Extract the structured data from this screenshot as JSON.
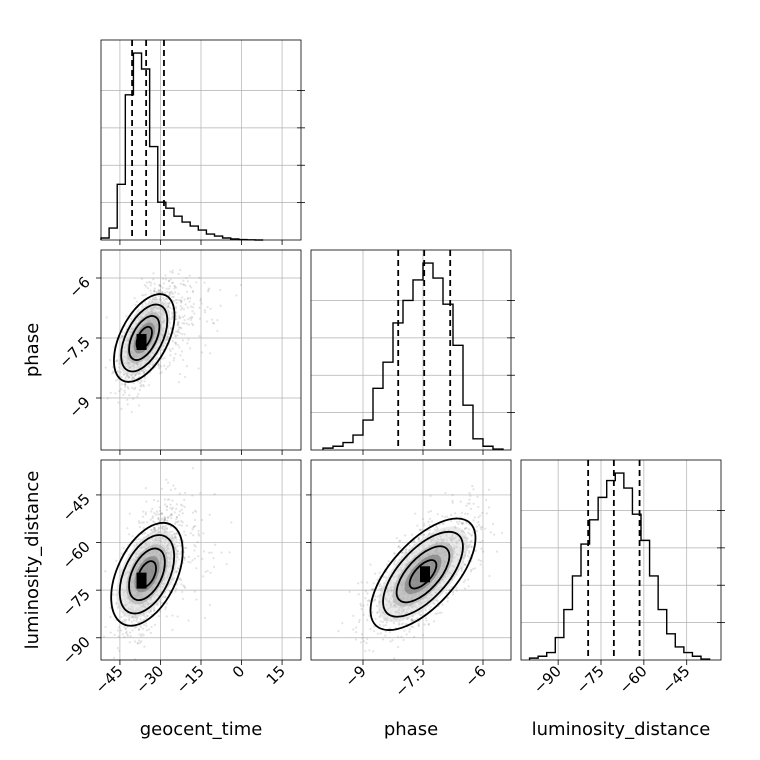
{
  "figure": {
    "type": "corner-plot",
    "colors": {
      "line": "#000000",
      "grid": "#b0b0b0",
      "axes": "#000000",
      "scatter": "#7f7f7f",
      "density_dark": "#000000",
      "density_light": "#e6e6e6"
    }
  },
  "chart_data": [
    {
      "type": "histogram",
      "panel": "geocent_time",
      "grid": true,
      "xlim": [
        -52,
        22
      ],
      "x_ticks": [
        -45,
        -30,
        -15,
        0,
        15
      ],
      "xlabel": "geocent_time",
      "bin_edges": [
        -52,
        -49,
        -46,
        -43,
        -40,
        -37,
        -34,
        -31,
        -28,
        -25,
        -22,
        -19,
        -16,
        -13,
        -10,
        -7,
        -4,
        -1,
        2,
        5,
        8
      ],
      "counts": [
        0.01,
        0.06,
        0.28,
        0.73,
        0.94,
        0.86,
        0.47,
        0.19,
        0.16,
        0.12,
        0.09,
        0.07,
        0.05,
        0.03,
        0.02,
        0.01,
        0.005,
        0.002,
        0.001,
        0.0
      ],
      "quantile_lines": [
        -40.5,
        -35.3,
        -28.7
      ]
    },
    {
      "type": "scatter+contour",
      "panel": "geocent_time_vs_phase",
      "grid": true,
      "xlim": [
        -52,
        22
      ],
      "ylim": [
        -10.3,
        -5.3
      ],
      "y_ticks": [
        -6.0,
        -7.5,
        -9.0
      ],
      "ylabel": "phase",
      "mean": [
        -36,
        -7.5
      ],
      "std": [
        4.5,
        0.6
      ],
      "correlation": 0.6,
      "contour_levels": [
        0.12,
        0.39,
        0.68,
        0.86
      ],
      "histogram_peak": [
        -37,
        -7.6
      ]
    },
    {
      "type": "histogram",
      "panel": "phase",
      "grid": true,
      "xlim": [
        -10.3,
        -5.3
      ],
      "x_ticks": [
        -9.0,
        -7.5,
        -6.0
      ],
      "xlabel": "phase",
      "bin_edges": [
        -10.0,
        -9.75,
        -9.5,
        -9.25,
        -9.0,
        -8.75,
        -8.5,
        -8.25,
        -8.0,
        -7.75,
        -7.5,
        -7.25,
        -7.0,
        -6.75,
        -6.5,
        -6.25,
        -6.0,
        -5.75,
        -5.5
      ],
      "counts": [
        0.01,
        0.02,
        0.04,
        0.08,
        0.16,
        0.33,
        0.47,
        0.68,
        0.8,
        0.91,
        1.0,
        0.92,
        0.78,
        0.56,
        0.24,
        0.06,
        0.02,
        0.005
      ],
      "quantile_lines": [
        -8.12,
        -7.47,
        -6.82
      ]
    },
    {
      "type": "scatter+contour",
      "panel": "geocent_time_vs_luminosity_distance",
      "grid": true,
      "xlim": [
        -52,
        22
      ],
      "ylim": [
        -97,
        -34
      ],
      "x_ticks": [
        -45,
        -30,
        -15,
        0,
        15
      ],
      "y_ticks": [
        -45,
        -60,
        -75,
        -90
      ],
      "xlabel": "geocent_time",
      "ylabel": "luminosity_distance",
      "mean": [
        -35,
        -70
      ],
      "std": [
        5,
        9
      ],
      "correlation": 0.55,
      "contour_levels": [
        0.12,
        0.39,
        0.68,
        0.86
      ],
      "histogram_peak": [
        -37,
        -72
      ]
    },
    {
      "type": "scatter+contour",
      "panel": "phase_vs_luminosity_distance",
      "grid": true,
      "xlim": [
        -10.3,
        -5.3
      ],
      "ylim": [
        -97,
        -34
      ],
      "x_ticks": [
        -9.0,
        -7.5,
        -6.0
      ],
      "y_ticks": [
        -45,
        -60,
        -75,
        -90
      ],
      "xlabel": "phase",
      "mean": [
        -7.5,
        -70
      ],
      "std": [
        0.65,
        9
      ],
      "correlation": 0.65,
      "contour_levels": [
        0.12,
        0.39,
        0.68,
        0.86
      ],
      "histogram_peak": [
        -7.45,
        -70
      ]
    },
    {
      "type": "histogram",
      "panel": "luminosity_distance",
      "grid": true,
      "xlim": [
        -103,
        -33
      ],
      "x_ticks": [
        -90,
        -75,
        -60,
        -45
      ],
      "xlabel": "luminosity_distance",
      "bin_edges": [
        -100,
        -97,
        -94,
        -91,
        -88,
        -85,
        -82,
        -79,
        -76,
        -73,
        -70,
        -67,
        -64,
        -61,
        -58,
        -55,
        -52,
        -49,
        -46,
        -43,
        -40,
        -37
      ],
      "counts": [
        0.01,
        0.02,
        0.04,
        0.12,
        0.27,
        0.45,
        0.62,
        0.75,
        0.87,
        0.96,
        1.0,
        0.92,
        0.78,
        0.64,
        0.45,
        0.27,
        0.14,
        0.07,
        0.04,
        0.02,
        0.005
      ],
      "quantile_lines": [
        -79.5,
        -70.5,
        -61.5
      ]
    }
  ]
}
